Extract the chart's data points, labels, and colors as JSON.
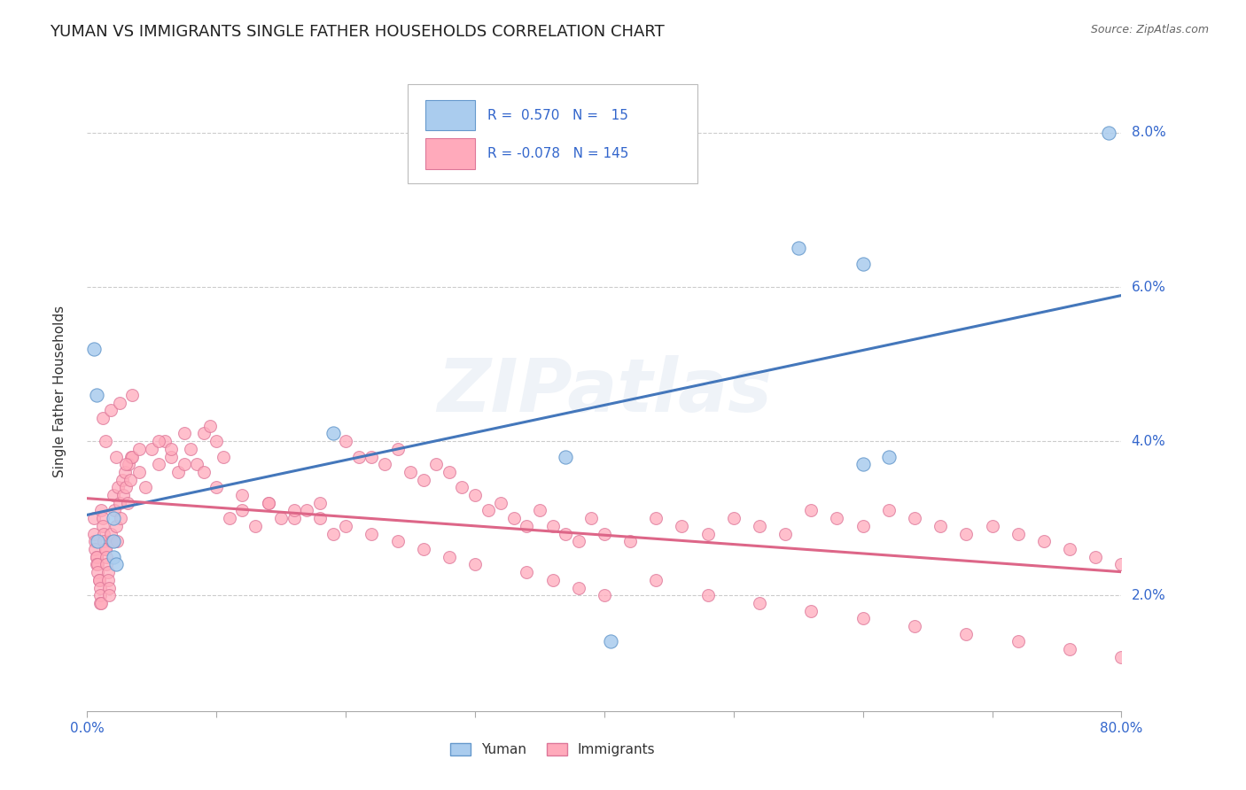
{
  "title": "YUMAN VS IMMIGRANTS SINGLE FATHER HOUSEHOLDS CORRELATION CHART",
  "source": "Source: ZipAtlas.com",
  "ylabel": "Single Father Households",
  "x_min": 0.0,
  "x_max": 0.8,
  "y_min": 0.005,
  "y_max": 0.088,
  "y_ticks": [
    0.02,
    0.04,
    0.06,
    0.08
  ],
  "y_tick_labels": [
    "2.0%",
    "4.0%",
    "6.0%",
    "8.0%"
  ],
  "grid_color": "#cccccc",
  "background_color": "#ffffff",
  "watermark": "ZIPatlas",
  "blue_color": "#6699cc",
  "blue_fill": "#aaccee",
  "pink_color": "#dd7799",
  "pink_fill": "#ffaabb",
  "trend_blue_color": "#4477bb",
  "trend_pink_color": "#dd6688",
  "blue_x": [
    0.005,
    0.007,
    0.008,
    0.02,
    0.02,
    0.02,
    0.022,
    0.19,
    0.37,
    0.405,
    0.55,
    0.6,
    0.62,
    0.79,
    0.6
  ],
  "blue_y": [
    0.052,
    0.046,
    0.027,
    0.03,
    0.027,
    0.025,
    0.024,
    0.041,
    0.038,
    0.014,
    0.065,
    0.037,
    0.038,
    0.08,
    0.063
  ],
  "pink_x": [
    0.005,
    0.005,
    0.006,
    0.006,
    0.007,
    0.007,
    0.007,
    0.008,
    0.008,
    0.009,
    0.009,
    0.01,
    0.01,
    0.01,
    0.011,
    0.011,
    0.012,
    0.012,
    0.013,
    0.013,
    0.014,
    0.014,
    0.015,
    0.015,
    0.016,
    0.016,
    0.017,
    0.017,
    0.018,
    0.019,
    0.02,
    0.021,
    0.022,
    0.023,
    0.024,
    0.025,
    0.026,
    0.027,
    0.028,
    0.029,
    0.03,
    0.031,
    0.032,
    0.033,
    0.034,
    0.035,
    0.04,
    0.045,
    0.05,
    0.055,
    0.06,
    0.065,
    0.07,
    0.075,
    0.08,
    0.085,
    0.09,
    0.095,
    0.1,
    0.105,
    0.11,
    0.12,
    0.13,
    0.14,
    0.15,
    0.16,
    0.17,
    0.18,
    0.19,
    0.2,
    0.21,
    0.22,
    0.23,
    0.24,
    0.25,
    0.26,
    0.27,
    0.28,
    0.29,
    0.3,
    0.31,
    0.32,
    0.33,
    0.34,
    0.35,
    0.36,
    0.37,
    0.38,
    0.39,
    0.4,
    0.42,
    0.44,
    0.46,
    0.48,
    0.5,
    0.52,
    0.54,
    0.56,
    0.58,
    0.6,
    0.62,
    0.64,
    0.66,
    0.68,
    0.7,
    0.72,
    0.74,
    0.76,
    0.78,
    0.8,
    0.014,
    0.022,
    0.03,
    0.04,
    0.055,
    0.065,
    0.075,
    0.09,
    0.1,
    0.12,
    0.14,
    0.16,
    0.18,
    0.2,
    0.22,
    0.24,
    0.26,
    0.28,
    0.3,
    0.34,
    0.36,
    0.38,
    0.4,
    0.44,
    0.48,
    0.52,
    0.56,
    0.6,
    0.64,
    0.68,
    0.72,
    0.76,
    0.8,
    0.012,
    0.018,
    0.025,
    0.035
  ],
  "pink_y": [
    0.03,
    0.028,
    0.027,
    0.026,
    0.025,
    0.025,
    0.024,
    0.024,
    0.023,
    0.022,
    0.022,
    0.021,
    0.02,
    0.019,
    0.019,
    0.031,
    0.03,
    0.029,
    0.028,
    0.027,
    0.026,
    0.026,
    0.025,
    0.024,
    0.023,
    0.022,
    0.021,
    0.02,
    0.028,
    0.027,
    0.033,
    0.031,
    0.029,
    0.027,
    0.034,
    0.032,
    0.03,
    0.035,
    0.033,
    0.036,
    0.034,
    0.032,
    0.037,
    0.035,
    0.038,
    0.038,
    0.036,
    0.034,
    0.039,
    0.037,
    0.04,
    0.038,
    0.036,
    0.041,
    0.039,
    0.037,
    0.041,
    0.042,
    0.04,
    0.038,
    0.03,
    0.031,
    0.029,
    0.032,
    0.03,
    0.03,
    0.031,
    0.032,
    0.028,
    0.04,
    0.038,
    0.038,
    0.037,
    0.039,
    0.036,
    0.035,
    0.037,
    0.036,
    0.034,
    0.033,
    0.031,
    0.032,
    0.03,
    0.029,
    0.031,
    0.029,
    0.028,
    0.027,
    0.03,
    0.028,
    0.027,
    0.03,
    0.029,
    0.028,
    0.03,
    0.029,
    0.028,
    0.031,
    0.03,
    0.029,
    0.031,
    0.03,
    0.029,
    0.028,
    0.029,
    0.028,
    0.027,
    0.026,
    0.025,
    0.024,
    0.04,
    0.038,
    0.037,
    0.039,
    0.04,
    0.039,
    0.037,
    0.036,
    0.034,
    0.033,
    0.032,
    0.031,
    0.03,
    0.029,
    0.028,
    0.027,
    0.026,
    0.025,
    0.024,
    0.023,
    0.022,
    0.021,
    0.02,
    0.022,
    0.02,
    0.019,
    0.018,
    0.017,
    0.016,
    0.015,
    0.014,
    0.013,
    0.012,
    0.043,
    0.044,
    0.045,
    0.046
  ]
}
